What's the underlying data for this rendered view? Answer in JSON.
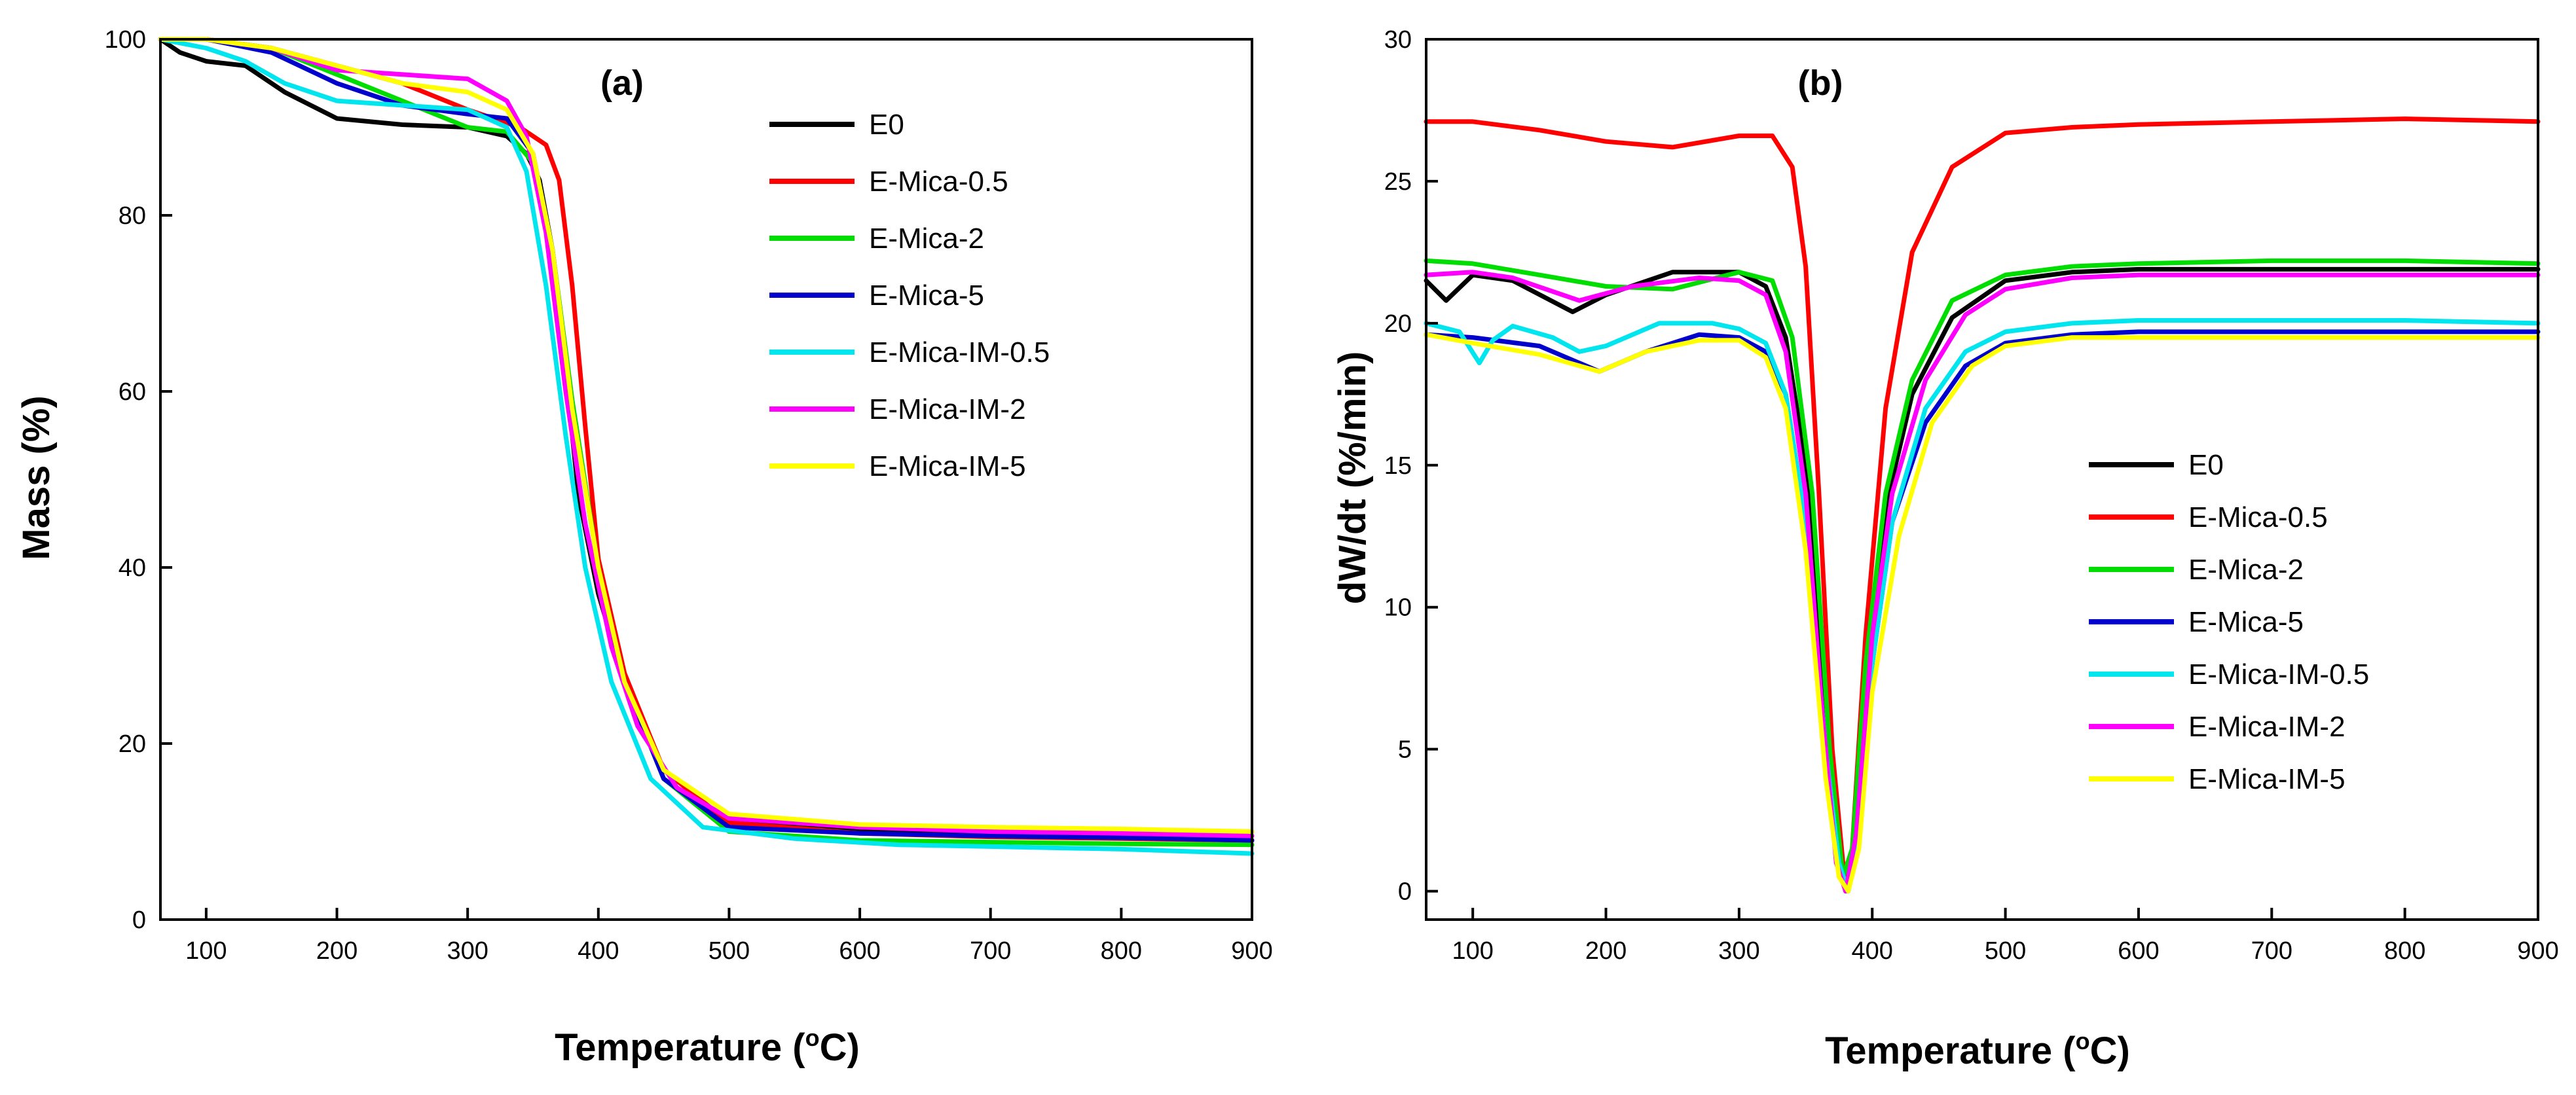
{
  "chart_data": [
    {
      "type": "line",
      "panel_label": "(a)",
      "xlabel": "Temperature (°C)",
      "xlabel_main": "Temperature (",
      "xlabel_sup": "o",
      "xlabel_end": "C)",
      "ylabel": "Mass (%)",
      "xlim": [
        65,
        900
      ],
      "ylim": [
        0,
        100
      ],
      "xticks": [
        100,
        200,
        300,
        400,
        500,
        600,
        700,
        800,
        900
      ],
      "yticks": [
        0,
        20,
        40,
        60,
        80,
        100
      ],
      "legend_position": "top-right",
      "series": [
        {
          "name": "E0",
          "color": "#000000",
          "x": [
            65,
            80,
            100,
            130,
            160,
            200,
            250,
            300,
            330,
            345,
            355,
            365,
            375,
            385,
            400,
            420,
            450,
            500,
            600,
            700,
            800,
            900
          ],
          "y": [
            100,
            98.5,
            97.5,
            97,
            94,
            91,
            90.3,
            90,
            89,
            87,
            84,
            76,
            62,
            48,
            37,
            27,
            17,
            11,
            10,
            9.8,
            9.5,
            9
          ]
        },
        {
          "name": "E-Mica-0.5",
          "color": "#ff0000",
          "x": [
            65,
            100,
            150,
            200,
            250,
            300,
            340,
            360,
            370,
            380,
            390,
            400,
            420,
            450,
            500,
            600,
            700,
            800,
            900
          ],
          "y": [
            100,
            100,
            99,
            97,
            95,
            92,
            90,
            88,
            84,
            72,
            56,
            41,
            28,
            17,
            11,
            9.8,
            9.4,
            9.2,
            9
          ]
        },
        {
          "name": "E-Mica-2",
          "color": "#00dd00",
          "x": [
            65,
            100,
            150,
            200,
            250,
            300,
            330,
            350,
            365,
            380,
            400,
            420,
            450,
            500,
            600,
            700,
            800,
            900
          ],
          "y": [
            100,
            100,
            99,
            96,
            93,
            90,
            89.5,
            86,
            76,
            59,
            40,
            27,
            16,
            10,
            9,
            8.8,
            8.6,
            8.5
          ]
        },
        {
          "name": "E-Mica-5",
          "color": "#0000cc",
          "x": [
            65,
            100,
            150,
            200,
            250,
            300,
            330,
            350,
            365,
            380,
            400,
            420,
            450,
            500,
            600,
            700,
            800,
            900
          ],
          "y": [
            100,
            100,
            98.5,
            95,
            92.5,
            91.5,
            91,
            87,
            76,
            58,
            40,
            27,
            16,
            10.5,
            9.8,
            9.5,
            9.3,
            9
          ]
        },
        {
          "name": "E-Mica-IM-0.5",
          "color": "#00e5ee",
          "x": [
            65,
            100,
            130,
            160,
            200,
            250,
            300,
            330,
            345,
            360,
            375,
            390,
            410,
            440,
            480,
            550,
            630,
            700,
            800,
            900
          ],
          "y": [
            100,
            99,
            97.5,
            95,
            93,
            92.5,
            92,
            90,
            85,
            72,
            55,
            40,
            27,
            16,
            10.5,
            9.2,
            8.5,
            8.3,
            8,
            7.5
          ]
        },
        {
          "name": "E-Mica-IM-2",
          "color": "#ff00ff",
          "x": [
            65,
            100,
            150,
            200,
            250,
            300,
            330,
            345,
            360,
            375,
            390,
            410,
            430,
            460,
            500,
            600,
            700,
            800,
            900
          ],
          "y": [
            100,
            100,
            99,
            96.5,
            96,
            95.5,
            93,
            89,
            78,
            60,
            45,
            31,
            22,
            15,
            11.5,
            10.5,
            10,
            9.8,
            9.5
          ]
        },
        {
          "name": "E-Mica-IM-5",
          "color": "#ffff00",
          "x": [
            65,
            100,
            150,
            200,
            250,
            300,
            330,
            350,
            365,
            380,
            400,
            420,
            450,
            500,
            600,
            700,
            800,
            900
          ],
          "y": [
            100,
            100,
            99,
            97,
            95,
            94,
            92,
            87,
            76,
            58,
            40,
            27,
            17,
            12,
            10.8,
            10.5,
            10.3,
            10
          ]
        }
      ]
    },
    {
      "type": "line",
      "panel_label": "(b)",
      "xlabel": "Temperature (°C)",
      "xlabel_main": "Temperature (",
      "xlabel_sup": "o",
      "xlabel_end": "C)",
      "ylabel": "dW/dt (%/min)",
      "xlim": [
        65,
        900
      ],
      "ylim": [
        -1,
        30
      ],
      "xticks": [
        100,
        200,
        300,
        400,
        500,
        600,
        700,
        800,
        900
      ],
      "yticks": [
        0,
        5,
        10,
        15,
        20,
        25,
        30
      ],
      "legend_position": "center-right",
      "series": [
        {
          "name": "E0",
          "color": "#000000",
          "x": [
            65,
            80,
            100,
            130,
            175,
            200,
            250,
            300,
            320,
            335,
            350,
            365,
            375,
            380,
            385,
            395,
            410,
            430,
            460,
            500,
            550,
            600,
            700,
            800,
            900
          ],
          "y": [
            21.5,
            20.8,
            21.7,
            21.5,
            20.4,
            21,
            21.8,
            21.8,
            21.3,
            19.5,
            15,
            6,
            1,
            0,
            1,
            7,
            13.5,
            17.5,
            20.2,
            21.5,
            21.8,
            21.9,
            21.9,
            21.9,
            21.9
          ]
        },
        {
          "name": "E-Mica-0.5",
          "color": "#ff0000",
          "x": [
            65,
            100,
            150,
            200,
            250,
            300,
            325,
            340,
            350,
            360,
            370,
            380,
            385,
            395,
            410,
            430,
            460,
            500,
            550,
            600,
            700,
            800,
            900
          ],
          "y": [
            27.1,
            27.1,
            26.8,
            26.4,
            26.2,
            26.6,
            26.6,
            25.5,
            22,
            14,
            5,
            0,
            1.5,
            9,
            17,
            22.5,
            25.5,
            26.7,
            26.9,
            27,
            27.1,
            27.2,
            27.1
          ]
        },
        {
          "name": "E-Mica-2",
          "color": "#00dd00",
          "x": [
            65,
            100,
            150,
            200,
            250,
            300,
            325,
            340,
            355,
            368,
            378,
            385,
            395,
            410,
            430,
            460,
            500,
            550,
            600,
            700,
            800,
            900
          ],
          "y": [
            22.2,
            22.1,
            21.7,
            21.3,
            21.2,
            21.8,
            21.5,
            19.5,
            14,
            5,
            0.5,
            1.5,
            8,
            14,
            18,
            20.8,
            21.7,
            22,
            22.1,
            22.2,
            22.2,
            22.1
          ]
        },
        {
          "name": "E-Mica-5",
          "color": "#0000cc",
          "x": [
            65,
            100,
            150,
            195,
            230,
            270,
            300,
            320,
            335,
            350,
            365,
            375,
            382,
            390,
            400,
            415,
            440,
            470,
            500,
            550,
            600,
            700,
            800,
            900
          ],
          "y": [
            19.6,
            19.5,
            19.2,
            18.3,
            19,
            19.6,
            19.5,
            19,
            17.5,
            13,
            5,
            1,
            0,
            2,
            8,
            13,
            16.5,
            18.5,
            19.3,
            19.6,
            19.7,
            19.7,
            19.7,
            19.7
          ]
        },
        {
          "name": "E-Mica-IM-0.5",
          "color": "#00e5ee",
          "x": [
            65,
            90,
            105,
            115,
            130,
            160,
            180,
            200,
            240,
            280,
            300,
            320,
            335,
            350,
            365,
            375,
            382,
            390,
            400,
            415,
            440,
            470,
            500,
            550,
            600,
            700,
            800,
            900
          ],
          "y": [
            20,
            19.7,
            18.6,
            19.4,
            19.9,
            19.5,
            19,
            19.2,
            20,
            20,
            19.8,
            19.3,
            17.5,
            13,
            5,
            1,
            0,
            2,
            8,
            13,
            17,
            19,
            19.7,
            20,
            20.1,
            20.1,
            20.1,
            20
          ]
        },
        {
          "name": "E-Mica-IM-2",
          "color": "#ff00ff",
          "x": [
            65,
            100,
            130,
            180,
            220,
            270,
            300,
            320,
            335,
            350,
            363,
            373,
            380,
            388,
            400,
            415,
            440,
            470,
            500,
            550,
            600,
            700,
            800,
            900
          ],
          "y": [
            21.7,
            21.8,
            21.6,
            20.8,
            21.3,
            21.6,
            21.5,
            21,
            19,
            14,
            6,
            1,
            0,
            2,
            9,
            14,
            18,
            20.3,
            21.2,
            21.6,
            21.7,
            21.7,
            21.7,
            21.7
          ]
        },
        {
          "name": "E-Mica-IM-5",
          "color": "#ffff00",
          "x": [
            65,
            100,
            150,
            195,
            230,
            270,
            300,
            320,
            335,
            350,
            365,
            375,
            382,
            390,
            400,
            420,
            445,
            475,
            500,
            550,
            600,
            700,
            800,
            900
          ],
          "y": [
            19.6,
            19.3,
            18.9,
            18.3,
            19,
            19.4,
            19.4,
            18.8,
            17,
            12,
            4,
            0.5,
            0,
            1.5,
            7,
            12.5,
            16.5,
            18.5,
            19.2,
            19.5,
            19.5,
            19.5,
            19.5,
            19.5
          ]
        }
      ]
    }
  ]
}
